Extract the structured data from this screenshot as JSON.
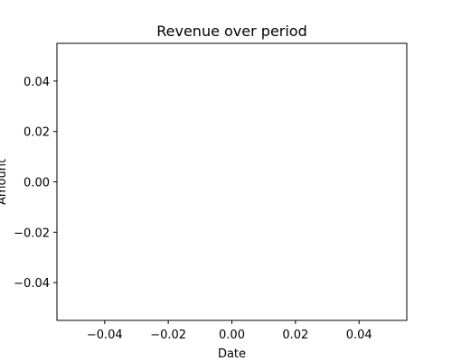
{
  "chart_data": {
    "type": "line",
    "title": "Revenue over period",
    "xlabel": "Date",
    "ylabel": "Amount",
    "x": [],
    "series": [
      {
        "values": []
      }
    ],
    "xlim": [
      -0.055,
      0.055
    ],
    "ylim": [
      -0.055,
      0.055
    ],
    "x_ticks": [
      -0.04,
      -0.02,
      0.0,
      0.02,
      0.04
    ],
    "y_ticks": [
      -0.04,
      -0.02,
      0.0,
      0.02,
      0.04
    ],
    "x_tick_labels": [
      "−0.04",
      "−0.02",
      "0.00",
      "0.02",
      "0.04"
    ],
    "y_tick_labels": [
      "−0.04",
      "−0.02",
      "0.00",
      "0.02",
      "0.04"
    ],
    "grid": false,
    "legend": false,
    "colors": {
      "axes": "#000000",
      "background": "#ffffff"
    }
  }
}
